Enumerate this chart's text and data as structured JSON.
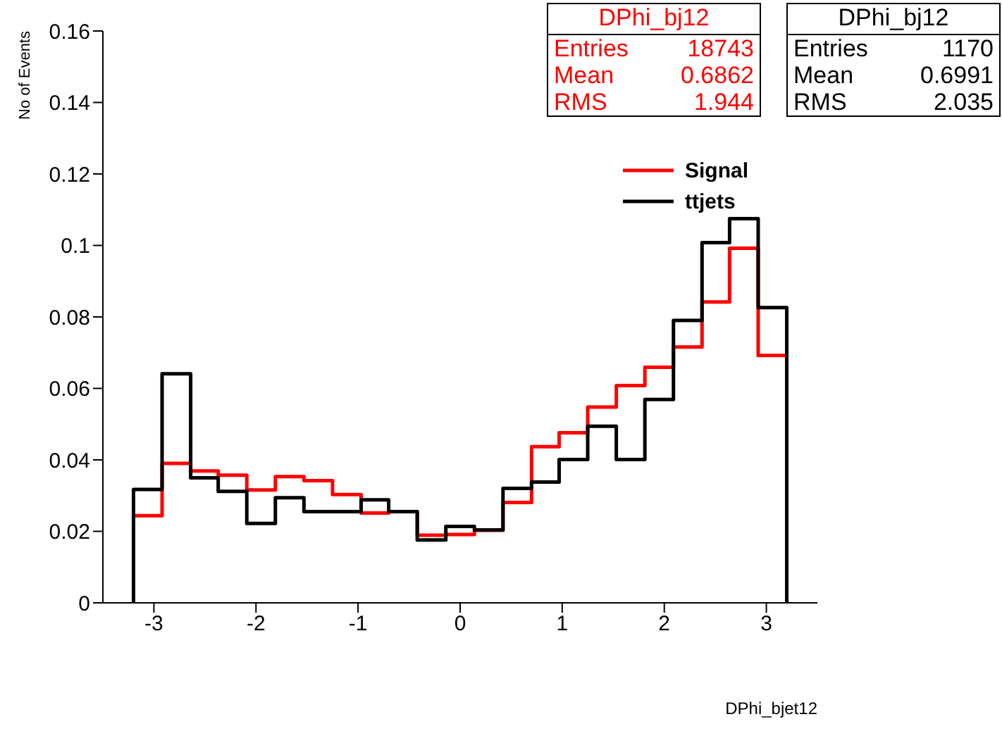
{
  "chart_data": {
    "type": "histogram",
    "xlabel": "DPhi_bjet12",
    "ylabel": "No of Events",
    "bins": [
      -3.2,
      -2.92,
      -2.64,
      -2.37,
      -2.09,
      -1.81,
      -1.53,
      -1.25,
      -0.97,
      -0.7,
      -0.42,
      -0.14,
      0.14,
      0.42,
      0.7,
      0.97,
      1.25,
      1.53,
      1.81,
      2.09,
      2.37,
      2.64,
      2.92,
      3.2
    ],
    "series": [
      {
        "name": "Signal",
        "color": "#ff0000",
        "values": [
          0.0244,
          0.039,
          0.0369,
          0.0357,
          0.0316,
          0.0353,
          0.0342,
          0.0303,
          0.0251,
          0.0255,
          0.0189,
          0.0191,
          0.0203,
          0.0281,
          0.0437,
          0.0476,
          0.0548,
          0.0608,
          0.0659,
          0.0716,
          0.0842,
          0.0992,
          0.0692
        ]
      },
      {
        "name": "ttjets",
        "color": "#000000",
        "values": [
          0.0317,
          0.0641,
          0.035,
          0.0312,
          0.0222,
          0.0294,
          0.0255,
          0.0255,
          0.0288,
          0.0255,
          0.0176,
          0.0214,
          0.0204,
          0.032,
          0.0338,
          0.0401,
          0.0494,
          0.0401,
          0.0569,
          0.079,
          0.1008,
          0.1075,
          0.0826
        ]
      }
    ],
    "xlim": [
      -3.5,
      3.5
    ],
    "xticks": [
      -3,
      -2,
      -1,
      0,
      1,
      2,
      3
    ],
    "ylim": [
      0,
      0.16
    ],
    "yticks": [
      0,
      0.02,
      0.04,
      0.06,
      0.08,
      0.1,
      0.12,
      0.14,
      0.16
    ],
    "legend": "top right",
    "line_style": "solid",
    "grid": false,
    "annotations": [
      "DPhi_bj12",
      "Entries",
      "18743",
      "Mean",
      "0.6862",
      "RMS",
      "1.944",
      "DPhi_bj12",
      "Entries",
      "1170",
      "Mean",
      "0.6991",
      "RMS",
      "2.035"
    ]
  }
}
